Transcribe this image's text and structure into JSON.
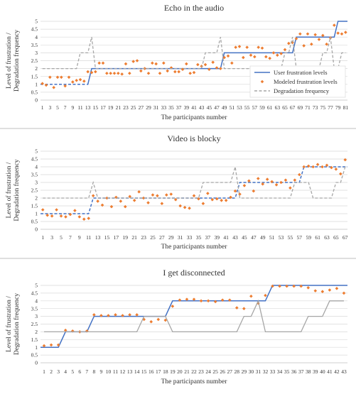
{
  "colors": {
    "user": "#4472c4",
    "modeled": "#ed7d31",
    "degradation": "#a6a6a6",
    "grid": "#d9d9d9",
    "axis": "#bfbfbf"
  },
  "chart_data": [
    {
      "type": "line",
      "title": "Echo in the audio",
      "xlabel": "The participants number",
      "ylabel": "Level of frustration / Degradation frequency",
      "ylim": [
        0,
        5
      ],
      "yticks": [
        0,
        0.5,
        1,
        1.5,
        2,
        2.5,
        3,
        3.5,
        4,
        4.5,
        5
      ],
      "n": 81,
      "xtick_step": 2,
      "legend": "right-bottom",
      "series": [
        {
          "name": "User frustration levels",
          "style": "solid-dashed-step",
          "values": [
            1,
            1,
            1,
            1,
            1,
            1,
            1,
            1,
            1,
            1,
            1,
            1,
            1,
            2,
            2,
            2,
            2,
            2,
            2,
            2,
            2,
            2,
            2,
            2,
            2,
            2,
            2,
            2,
            2,
            2,
            2,
            2,
            2,
            2,
            2,
            2,
            2,
            2,
            2,
            2,
            2,
            2,
            2,
            2,
            2,
            2,
            2,
            2,
            3,
            3,
            3,
            3,
            3,
            3,
            3,
            3,
            3,
            3,
            3,
            3,
            3,
            3,
            3,
            3,
            3,
            3,
            3,
            4,
            4,
            4,
            4,
            4,
            4,
            4,
            4,
            4,
            4,
            4,
            5,
            5,
            5
          ]
        },
        {
          "name": "Modeled frustration levels",
          "style": "markers",
          "values": [
            1.05,
            0.95,
            1.45,
            0.8,
            1.45,
            1.45,
            0.9,
            1.45,
            1.15,
            1.25,
            1.3,
            1.2,
            1.8,
            1.75,
            1.8,
            2.35,
            2.35,
            1.7,
            1.7,
            1.7,
            1.7,
            1.65,
            2.3,
            1.7,
            2.45,
            2.5,
            1.85,
            2.0,
            1.7,
            2.35,
            2.3,
            1.7,
            2.35,
            1.85,
            2.05,
            1.8,
            1.8,
            1.95,
            2.3,
            1.7,
            1.75,
            2.25,
            2.15,
            2.25,
            1.95,
            2.4,
            2.05,
            2.0,
            2.7,
            2.8,
            2.35,
            3.35,
            3.4,
            2.7,
            3.35,
            2.85,
            2.75,
            3.35,
            3.3,
            2.75,
            2.65,
            3.0,
            2.85,
            2.95,
            3.2,
            3.6,
            3.65,
            3.9,
            4.2,
            3.45,
            4.2,
            3.55,
            4.15,
            3.85,
            4.1,
            3.55,
            3.95,
            4.75,
            4.25,
            4.2,
            4.3
          ]
        },
        {
          "name": "Degradation frequency",
          "style": "dashed",
          "values": [
            2,
            2,
            2,
            2,
            2,
            2,
            2,
            2,
            2,
            2,
            3,
            3,
            3,
            4,
            2,
            2,
            2,
            2,
            2,
            2,
            2,
            2,
            2,
            2,
            2,
            2,
            2,
            2,
            2,
            2,
            2,
            2,
            2,
            2,
            2,
            2,
            2,
            2,
            2,
            2,
            2,
            2,
            2,
            3,
            3,
            3,
            3,
            4,
            2,
            2,
            2,
            2,
            2,
            2,
            2,
            2,
            2,
            2,
            2,
            2,
            2,
            2,
            2,
            2,
            3,
            3,
            4,
            2,
            2,
            2,
            2,
            2,
            2,
            2,
            3,
            3,
            4,
            2,
            2,
            3,
            3
          ]
        }
      ]
    },
    {
      "type": "line",
      "title": "Video is blocky",
      "xlabel": "The participants number",
      "ylabel": "Level of frustration / Degradation frequency",
      "ylim": [
        0,
        5
      ],
      "yticks": [
        0,
        0.5,
        1,
        1.5,
        2,
        2.5,
        3,
        3.5,
        4,
        4.5,
        5
      ],
      "n": 67,
      "xtick_step": 2,
      "legend": "",
      "series": [
        {
          "name": "User frustration levels",
          "style": "dashed-step",
          "values": [
            1,
            1,
            1,
            1,
            1,
            1,
            1,
            1,
            1,
            1,
            1,
            2,
            2,
            2,
            2,
            2,
            2,
            2,
            2,
            2,
            2,
            2,
            2,
            2,
            2,
            2,
            2,
            2,
            2,
            2,
            2,
            2,
            2,
            2,
            2,
            2,
            2,
            2,
            2,
            2,
            2,
            2,
            2,
            3,
            3,
            3,
            3,
            3,
            3,
            3,
            3,
            3,
            3,
            3,
            3,
            3,
            3,
            4,
            4,
            4,
            4,
            4,
            4,
            4,
            4,
            4,
            4
          ]
        },
        {
          "name": "Modeled frustration levels",
          "style": "markers",
          "values": [
            1.25,
            0.9,
            0.85,
            1.25,
            0.85,
            0.8,
            0.95,
            1.2,
            0.8,
            0.65,
            0.7,
            2.15,
            1.8,
            1.55,
            2.0,
            1.45,
            2.05,
            1.8,
            1.45,
            2.1,
            1.85,
            2.4,
            2.0,
            1.7,
            2.2,
            2.15,
            1.65,
            2.2,
            2.25,
            1.9,
            1.5,
            1.4,
            1.35,
            2.15,
            1.95,
            1.65,
            2.3,
            1.9,
            1.95,
            1.85,
            1.85,
            2.05,
            2.45,
            2.25,
            2.8,
            3.1,
            2.45,
            3.25,
            2.9,
            3.2,
            3.05,
            2.85,
            3.0,
            3.15,
            2.65,
            3.15,
            3.5,
            4.0,
            4.05,
            4.0,
            4.15,
            4.0,
            4.1,
            3.95,
            3.85,
            3.55,
            4.45
          ]
        },
        {
          "name": "Degradation frequency",
          "style": "dashed",
          "values": [
            2,
            2,
            2,
            2,
            2,
            2,
            2,
            2,
            2,
            2,
            2,
            3,
            2,
            2,
            2,
            2,
            2,
            2,
            2,
            2,
            2,
            2,
            2,
            2,
            2,
            2,
            2,
            2,
            2,
            2,
            2,
            2,
            2,
            2,
            2,
            3,
            3,
            3,
            3,
            3,
            3,
            3,
            4,
            2,
            2,
            2,
            2,
            2,
            2,
            2,
            2,
            2,
            2,
            2,
            2,
            3,
            3,
            3,
            3,
            2,
            2,
            2,
            2,
            2,
            3,
            3,
            4
          ]
        }
      ]
    },
    {
      "type": "line",
      "title": "I get disconnected",
      "xlabel": "The participants number",
      "ylabel": "Level of frustration / Degradation frequency",
      "ylim": [
        0,
        5
      ],
      "yticks": [
        0,
        0.5,
        1,
        1.5,
        2,
        2.5,
        3,
        3.5,
        4,
        4.5,
        5
      ],
      "n": 43,
      "xtick_step": 1,
      "legend": "",
      "series": [
        {
          "name": "User frustration levels",
          "style": "solid",
          "values": [
            1,
            1,
            1,
            2,
            2,
            2,
            2,
            3,
            3,
            3,
            3,
            3,
            3,
            3,
            3,
            3,
            3,
            3,
            4,
            4,
            4,
            4,
            4,
            4,
            4,
            4,
            4,
            4,
            4,
            4,
            4,
            4,
            5,
            5,
            5,
            5,
            5,
            5,
            5,
            5,
            5,
            5,
            5
          ]
        },
        {
          "name": "Modeled frustration levels",
          "style": "markers",
          "values": [
            1.1,
            1.15,
            1.15,
            2.1,
            2.05,
            2.0,
            2.05,
            3.1,
            3.05,
            3.05,
            3.1,
            3.05,
            3.1,
            3.1,
            2.8,
            2.65,
            2.8,
            2.75,
            3.65,
            4.05,
            4.1,
            4.1,
            4.0,
            4.0,
            3.95,
            4.05,
            4.05,
            3.55,
            3.5,
            4.3,
            3.85,
            4.35,
            4.95,
            4.95,
            4.95,
            4.95,
            4.95,
            4.85,
            4.65,
            4.6,
            4.7,
            4.8,
            4.5
          ]
        },
        {
          "name": "Degradation frequency",
          "style": "solid",
          "values": [
            2,
            2,
            2,
            2,
            2,
            2,
            2,
            2,
            2,
            2,
            2,
            2,
            2,
            2,
            3,
            3,
            3,
            3,
            2,
            2,
            2,
            2,
            2,
            2,
            2,
            2,
            2,
            2,
            3,
            3,
            4,
            2,
            2,
            2,
            2,
            2,
            2,
            3,
            3,
            3,
            4,
            4,
            4
          ]
        }
      ]
    }
  ]
}
